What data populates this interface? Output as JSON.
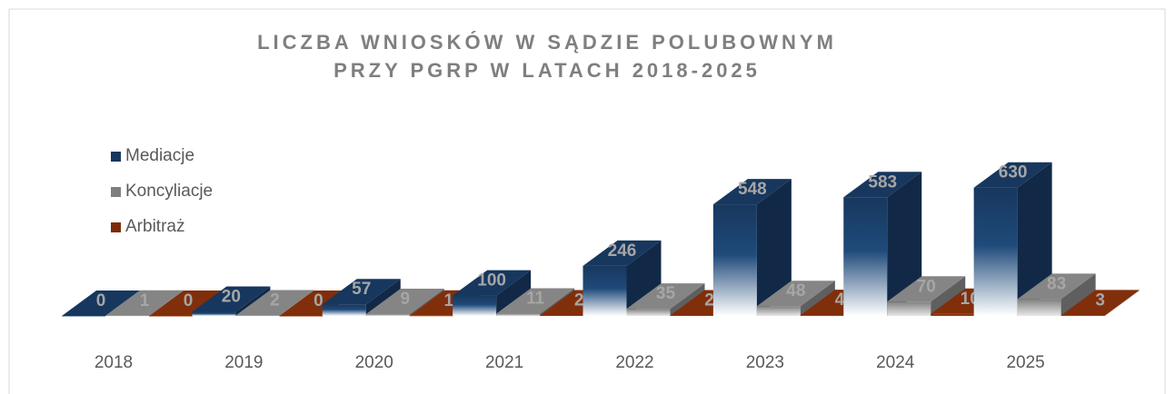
{
  "chart_data": {
    "type": "bar3d",
    "title": [
      "LICZBA WNIOSKÓW W SĄDZIE POLUBOWNYM",
      "PRZY PGRP W LATACH 2018-2025"
    ],
    "categories": [
      "2018",
      "2019",
      "2020",
      "2021",
      "2022",
      "2023",
      "2024",
      "2025"
    ],
    "series": [
      {
        "name": "Mediacje",
        "color": "#17375e",
        "values": [
          0,
          20,
          57,
          100,
          246,
          548,
          583,
          630
        ]
      },
      {
        "name": "Koncyliacje",
        "color": "#7f7f7f",
        "values": [
          1,
          2,
          9,
          11,
          35,
          48,
          70,
          83
        ]
      },
      {
        "name": "Arbitraż",
        "color": "#7b2c0a",
        "values": [
          0,
          0,
          1,
          2,
          2,
          4,
          10,
          3
        ]
      }
    ],
    "ylim": [
      0,
      700
    ],
    "legend": "left"
  }
}
